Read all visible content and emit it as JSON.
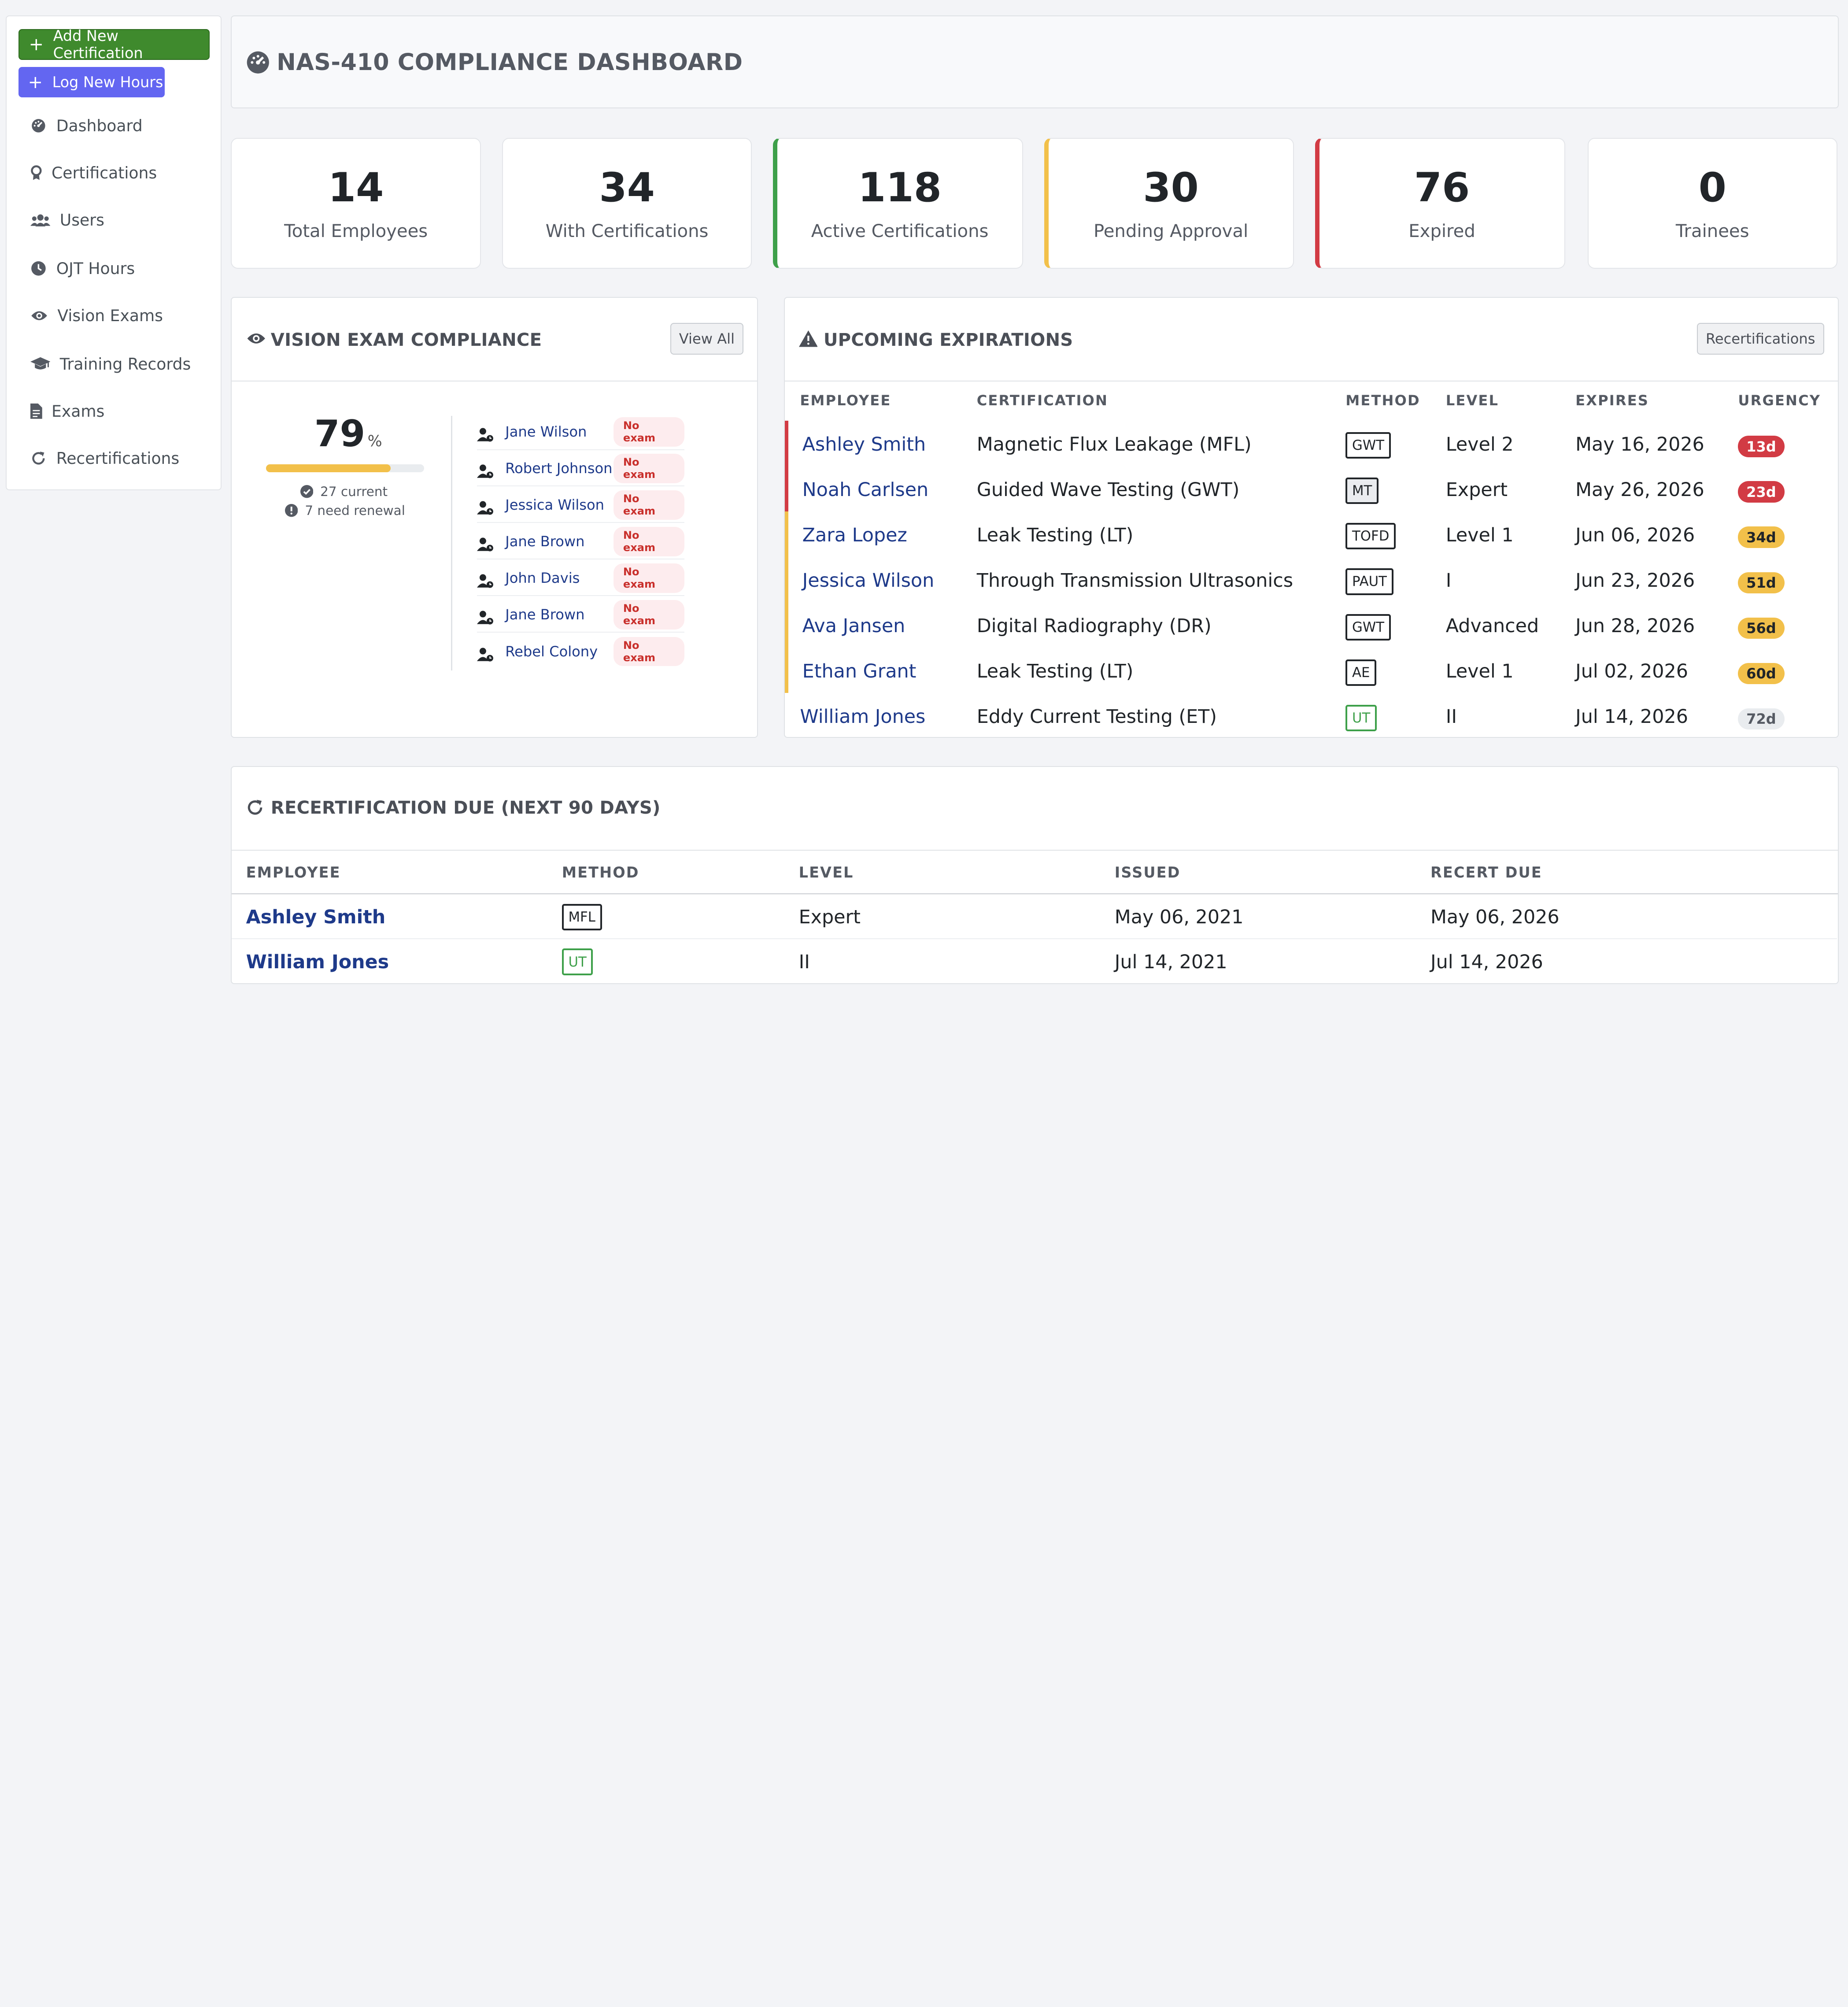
{
  "sidebar": {
    "add_cert_label": "Add New Certification",
    "log_hours_label": "Log New Hours",
    "items": [
      {
        "label": "Dashboard",
        "icon": "dashboard-icon"
      },
      {
        "label": "Certifications",
        "icon": "award-icon"
      },
      {
        "label": "Users",
        "icon": "users-icon"
      },
      {
        "label": "OJT Hours",
        "icon": "clock-icon"
      },
      {
        "label": "Vision Exams",
        "icon": "eye-icon"
      },
      {
        "label": "Training Records",
        "icon": "graduation-cap-icon"
      },
      {
        "label": "Exams",
        "icon": "file-icon"
      },
      {
        "label": "Recertifications",
        "icon": "refresh-icon"
      }
    ]
  },
  "header": {
    "title": "NAS-410 COMPLIANCE DASHBOARD"
  },
  "stats": [
    {
      "value": "14",
      "label": "Total Employees"
    },
    {
      "value": "34",
      "label": "With Certifications"
    },
    {
      "value": "118",
      "label": "Active Certifications"
    },
    {
      "value": "30",
      "label": "Pending Approval"
    },
    {
      "value": "76",
      "label": "Expired"
    },
    {
      "value": "0",
      "label": "Trainees"
    }
  ],
  "vision": {
    "title": "VISION EXAM COMPLIANCE",
    "view_all": "View All",
    "percent": "79",
    "percent_unit": "%",
    "percent_value": 0.79,
    "current_text": "27 current",
    "renewal_text": "7 need renewal",
    "rows": [
      {
        "name": "Jane Wilson",
        "status": "No exam"
      },
      {
        "name": "Robert Johnson",
        "status": "No exam"
      },
      {
        "name": "Jessica Wilson",
        "status": "No exam"
      },
      {
        "name": "Jane Brown",
        "status": "No exam"
      },
      {
        "name": "John Davis",
        "status": "No exam"
      },
      {
        "name": "Jane Brown",
        "status": "No exam"
      },
      {
        "name": "Rebel Colony",
        "status": "No exam"
      }
    ]
  },
  "upcoming": {
    "title": "UPCOMING EXPIRATIONS",
    "button": "Recertifications",
    "headers": [
      "EMPLOYEE",
      "CERTIFICATION",
      "METHOD",
      "LEVEL",
      "EXPIRES",
      "URGENCY"
    ],
    "rows": [
      {
        "employee": "Ashley Smith",
        "certification": "Magnetic Flux Leakage (MFL)",
        "method": "GWT",
        "level": "Level 2",
        "expires": "May 16, 2026",
        "urgency": "13d"
      },
      {
        "employee": "Noah Carlsen",
        "certification": "Guided Wave Testing (GWT)",
        "method": "MT",
        "level": "Expert",
        "expires": "May 26, 2026",
        "urgency": "23d"
      },
      {
        "employee": "Zara Lopez",
        "certification": "Leak Testing (LT)",
        "method": "TOFD",
        "level": "Level 1",
        "expires": "Jun 06, 2026",
        "urgency": "34d"
      },
      {
        "employee": "Jessica Wilson",
        "certification": "Through Transmission Ultrasonics",
        "method": "PAUT",
        "level": "I",
        "expires": "Jun 23, 2026",
        "urgency": "51d"
      },
      {
        "employee": "Ava Jansen",
        "certification": "Digital Radiography (DR)",
        "method": "GWT",
        "level": "Advanced",
        "expires": "Jun 28, 2026",
        "urgency": "56d"
      },
      {
        "employee": "Ethan Grant",
        "certification": "Leak Testing (LT)",
        "method": "AE",
        "level": "Level 1",
        "expires": "Jul 02, 2026",
        "urgency": "60d"
      },
      {
        "employee": "William Jones",
        "certification": "Eddy Current Testing (ET)",
        "method": "UT",
        "level": "II",
        "expires": "Jul 14, 2026",
        "urgency": "72d"
      }
    ]
  },
  "recert": {
    "title": "RECERTIFICATION DUE (NEXT 90 DAYS)",
    "headers": [
      "EMPLOYEE",
      "METHOD",
      "LEVEL",
      "ISSUED",
      "RECERT DUE"
    ],
    "rows": [
      {
        "employee": "Ashley Smith",
        "method": "MFL",
        "level": "Expert",
        "issued": "May 06, 2021",
        "due": "May 06, 2026"
      },
      {
        "employee": "William Jones",
        "method": "UT",
        "level": "II",
        "issued": "Jul 14, 2021",
        "due": "Jul 14, 2026"
      }
    ]
  },
  "colors": {
    "green": "#3ea04a",
    "yellow": "#f2c04a",
    "red": "#d23b44",
    "link": "#1e3a8a",
    "indigo": "#6366f1"
  }
}
